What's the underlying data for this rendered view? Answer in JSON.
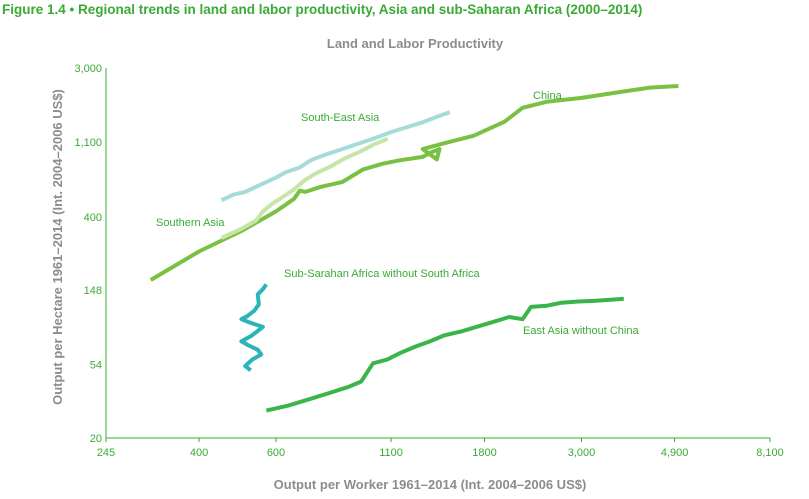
{
  "figure_title": "Figure 1.4 • Regional trends in land and labor productivity, Asia and sub-Saharan Africa (2000–2014)",
  "chart_data": {
    "type": "line",
    "title": "Land and Labor Productivity",
    "xlabel": "Output per Worker 1961–2014 (Int. 2004–2006 US$)",
    "ylabel": "Output per Hectare 1961–2014 (Int. 2004–2006 US$)",
    "x_scale": "log",
    "y_scale": "log",
    "x_ticks": [
      245,
      400,
      600,
      1100,
      1800,
      3000,
      4900,
      8100
    ],
    "x_tick_labels": [
      "245",
      "400",
      "600",
      "1100",
      "1800",
      "3,000",
      "4,900",
      "8,100"
    ],
    "y_ticks": [
      20,
      54,
      148,
      400,
      1100,
      3000
    ],
    "y_tick_labels": [
      "20",
      "54",
      "148",
      "400",
      "1,100",
      "3,000"
    ],
    "xlim": [
      245,
      8100
    ],
    "ylim": [
      20,
      3000
    ],
    "grid": false,
    "series": [
      {
        "name": "China",
        "color": "#7ac143",
        "x": [
          310,
          400,
          500,
          600,
          660,
          680,
          700,
          760,
          850,
          950,
          1050,
          1150,
          1300,
          1350,
          1420,
          1400,
          1300,
          1450,
          1700,
          2000,
          2200,
          2500,
          3000,
          3600,
          4300,
          5000
        ],
        "y": [
          170,
          250,
          330,
          430,
          510,
          570,
          560,
          600,
          640,
          760,
          820,
          860,
          900,
          950,
          1000,
          870,
          1000,
          1080,
          1200,
          1450,
          1750,
          1900,
          2000,
          2150,
          2300,
          2350
        ]
      },
      {
        "name": "South-East Asia",
        "color": "#a6dbd9",
        "x": [
          450,
          480,
          510,
          540,
          570,
          600,
          630,
          680,
          720,
          780,
          850,
          930,
          1000,
          1100,
          1200,
          1300,
          1400,
          1500
        ],
        "y": [
          500,
          540,
          560,
          600,
          640,
          680,
          730,
          780,
          860,
          930,
          1000,
          1080,
          1150,
          1260,
          1350,
          1440,
          1550,
          1650
        ]
      },
      {
        "name": "Southern Asia",
        "color": "#c7e5a8",
        "x": [
          450,
          500,
          540,
          560,
          590,
          620,
          660,
          700,
          740,
          800,
          860,
          930,
          1000,
          1080
        ],
        "y": [
          300,
          340,
          380,
          430,
          480,
          520,
          580,
          660,
          720,
          790,
          880,
          960,
          1060,
          1150
        ]
      },
      {
        "name": "Sub-Sarahan Africa without South Africa",
        "color": "#2bb5b8",
        "x": [
          570,
          560,
          545,
          548,
          535,
          515,
          500,
          520,
          560,
          528,
          500,
          520,
          545,
          555,
          530,
          510,
          525
        ],
        "y": [
          160,
          150,
          140,
          122,
          112,
          104,
          100,
          96,
          90,
          80,
          74,
          70,
          66,
          62,
          58,
          53,
          50
        ]
      },
      {
        "name": "East Asia without China",
        "color": "#39b54a",
        "x": [
          570,
          640,
          720,
          800,
          880,
          940,
          1000,
          1080,
          1150,
          1250,
          1350,
          1450,
          1600,
          1750,
          1900,
          2050,
          2200,
          2300,
          2500,
          2700,
          2950,
          3200,
          3500,
          3750
        ],
        "y": [
          29,
          31,
          34,
          37,
          40,
          43,
          55,
          58,
          63,
          69,
          74,
          80,
          85,
          91,
          97,
          103,
          100,
          118,
          120,
          125,
          127,
          128,
          130,
          132
        ]
      }
    ]
  }
}
